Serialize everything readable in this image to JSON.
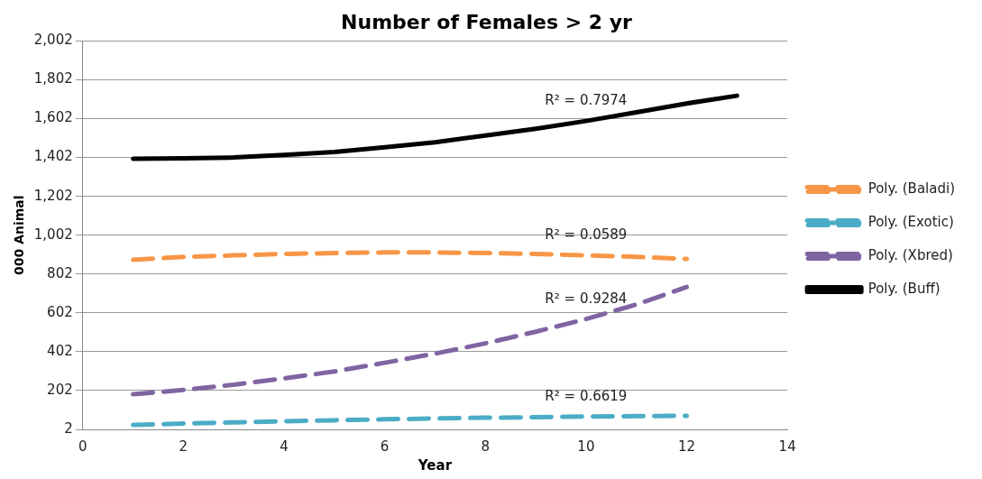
{
  "chart_data": {
    "type": "line",
    "title": "Number of Females > 2 yr",
    "xlabel": "Year",
    "ylabel": "000 Animal",
    "x": [
      1,
      2,
      3,
      4,
      5,
      6,
      7,
      8,
      9,
      10,
      11,
      12
    ],
    "series": [
      {
        "name": "Poly. (Baladi)",
        "color": "#f79646",
        "line_style": "dashed",
        "values": [
          875,
          890,
          898,
          905,
          910,
          913,
          913,
          910,
          905,
          898,
          890,
          880
        ]
      },
      {
        "name": "Poly. (Exotic)",
        "color": "#4bacc6",
        "line_style": "dashed",
        "values": [
          25,
          32,
          38,
          44,
          49,
          54,
          58,
          62,
          65,
          68,
          70,
          72
        ]
      },
      {
        "name": "Poly. (Xbred)",
        "color": "#8064a2",
        "line_style": "dashed",
        "values": [
          183,
          205,
          232,
          265,
          300,
          345,
          392,
          445,
          505,
          570,
          645,
          735
        ]
      },
      {
        "name": "Poly. (Buff)",
        "color": "#000000",
        "line_style": "solid",
        "x": [
          1,
          2,
          3,
          4,
          5,
          6,
          7,
          8,
          9,
          10,
          11,
          12,
          13
        ],
        "values": [
          1395,
          1398,
          1402,
          1415,
          1430,
          1455,
          1480,
          1515,
          1550,
          1590,
          1635,
          1680,
          1720
        ]
      }
    ],
    "annotations": [
      "R² = 0.0589",
      "R² = 0.6619",
      "R² = 0.9284",
      "R² = 0.7974"
    ],
    "xlim": [
      0,
      14
    ],
    "xticks": [
      0,
      2,
      4,
      6,
      8,
      10,
      12,
      14
    ],
    "ylim": [
      2,
      2002
    ],
    "yticks": [
      2,
      202,
      402,
      602,
      802,
      {
        "value": 1002,
        "label": "1,002"
      },
      {
        "value": 1202,
        "label": "1,202"
      },
      {
        "value": 1402,
        "label": "1,402"
      },
      {
        "value": 1602,
        "label": "1,602"
      },
      {
        "value": 1802,
        "label": "1,802"
      },
      {
        "value": 2002,
        "label": "2,002"
      }
    ],
    "grid": "y",
    "legend": "right",
    "marker": "none"
  }
}
